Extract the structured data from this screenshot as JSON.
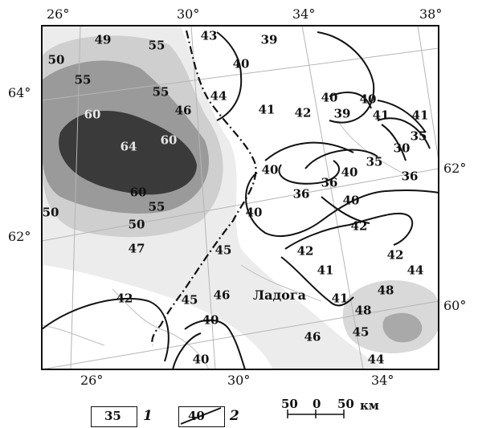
{
  "graticule": {
    "top": [
      "26°",
      "30°",
      "34°",
      "38°"
    ],
    "bottom": [
      "26°",
      "30°",
      "34°"
    ],
    "left": [
      "64°",
      "62°"
    ],
    "right": [
      "62°",
      "60°"
    ]
  },
  "lake_label": "Ладога",
  "values": [
    "49",
    "55",
    "50",
    "55",
    "55",
    "46",
    "43",
    "39",
    "40",
    "44",
    "41",
    "42",
    "40",
    "39",
    "40",
    "41",
    "41",
    "35",
    "30",
    "35",
    "36",
    "40",
    "36",
    "36",
    "40",
    "40",
    "42",
    "60",
    "64",
    "60",
    "60",
    "55",
    "50",
    "50",
    "47",
    "42",
    "42",
    "44",
    "45",
    "41",
    "41",
    "48",
    "48",
    "45",
    "46",
    "46",
    "45",
    "40",
    "42",
    "44",
    "40",
    "40"
  ],
  "shading_levels": [
    "#ececec",
    "#cfcfcf",
    "#9a9a9a",
    "#3a3a3a"
  ],
  "legend": {
    "item1_value": "35",
    "item1_index": "1",
    "item2_value": "40",
    "item2_index": "2"
  },
  "scale_bar": {
    "left": "50",
    "mid": "0",
    "right": "50",
    "unit": "км"
  }
}
